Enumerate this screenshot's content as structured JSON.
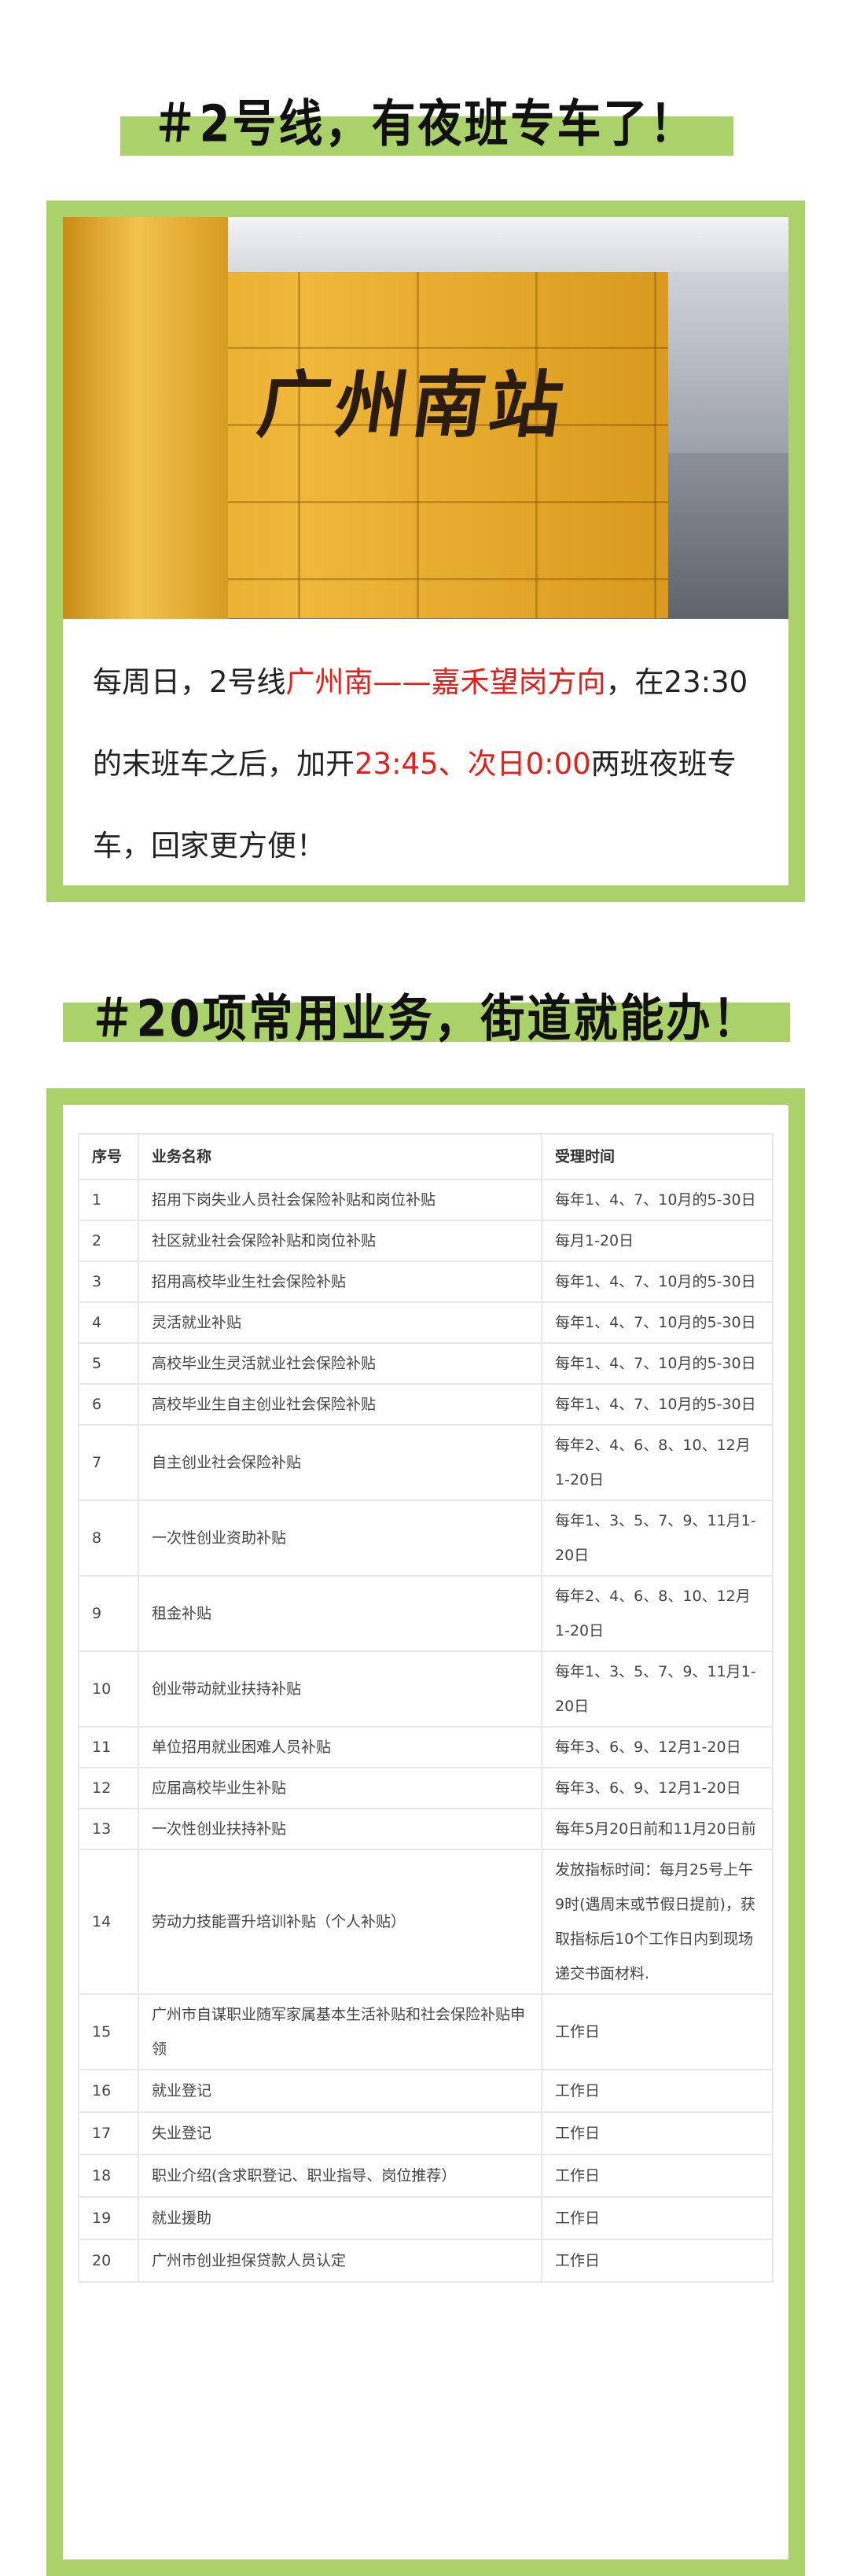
{
  "section1": {
    "heading": "＃2号线，有夜班专车了！",
    "photo_sign": "广州南站",
    "paragraph": [
      {
        "text": "每周日，2号线",
        "highlight": false
      },
      {
        "text": "广州南——嘉禾望岗方向",
        "highlight": true
      },
      {
        "text": "，在23:30的末班车之后，加开",
        "highlight": false
      },
      {
        "text": "23:45、次日0:00",
        "highlight": true
      },
      {
        "text": "两班夜班专车，回家更方便！",
        "highlight": false
      }
    ]
  },
  "section2": {
    "heading": "＃20项常用业务，街道就能办！",
    "table": {
      "headers": [
        "序号",
        "业务名称",
        "受理时间"
      ],
      "rows": [
        [
          "1",
          "招用下岗失业人员社会保险补贴和岗位补贴",
          "每年1、4、7、10月的5-30日"
        ],
        [
          "2",
          "社区就业社会保险补贴和岗位补贴",
          "每月1-20日"
        ],
        [
          "3",
          "招用高校毕业生社会保险补贴",
          "每年1、4、7、10月的5-30日"
        ],
        [
          "4",
          "灵活就业补贴",
          "每年1、4、7、10月的5-30日"
        ],
        [
          "5",
          "高校毕业生灵活就业社会保险补贴",
          "每年1、4、7、10月的5-30日"
        ],
        [
          "6",
          "高校毕业生自主创业社会保险补贴",
          "每年1、4、7、10月的5-30日"
        ],
        [
          "7",
          "自主创业社会保险补贴",
          "每年2、4、6、8、10、12月1-20日"
        ],
        [
          "8",
          "一次性创业资助补贴",
          "每年1、3、5、7、9、11月1-20日"
        ],
        [
          "9",
          "租金补贴",
          "每年2、4、6、8、10、12月1-20日"
        ],
        [
          "10",
          "创业带动就业扶持补贴",
          "每年1、3、5、7、9、11月1-20日"
        ],
        [
          "11",
          "单位招用就业困难人员补贴",
          "每年3、6、9、12月1-20日"
        ],
        [
          "12",
          "应届高校毕业生补贴",
          "每年3、6、9、12月1-20日"
        ],
        [
          "13",
          "一次性创业扶持补贴",
          "每年5月20日前和11月20日前"
        ],
        [
          "14",
          "劳动力技能晋升培训补贴（个人补贴）",
          "发放指标时间：每月25号上午9时(遇周末或节假日提前)，获取指标后10个工作日内到现场递交书面材料."
        ],
        [
          "15",
          "广州市自谋职业随军家属基本生活补贴和社会保险补贴申领",
          "工作日"
        ],
        [
          "16",
          "就业登记",
          "工作日"
        ],
        [
          "17",
          "失业登记",
          "工作日"
        ],
        [
          "18",
          "职业介绍(含求职登记、职业指导、岗位推荐）",
          "工作日"
        ],
        [
          "19",
          "就业援助",
          "工作日"
        ],
        [
          "20",
          "广州市创业担保贷款人员认定",
          "工作日"
        ]
      ]
    }
  },
  "colors": {
    "accent_green": "#abd16b",
    "highlight_red": "#e0201d"
  }
}
